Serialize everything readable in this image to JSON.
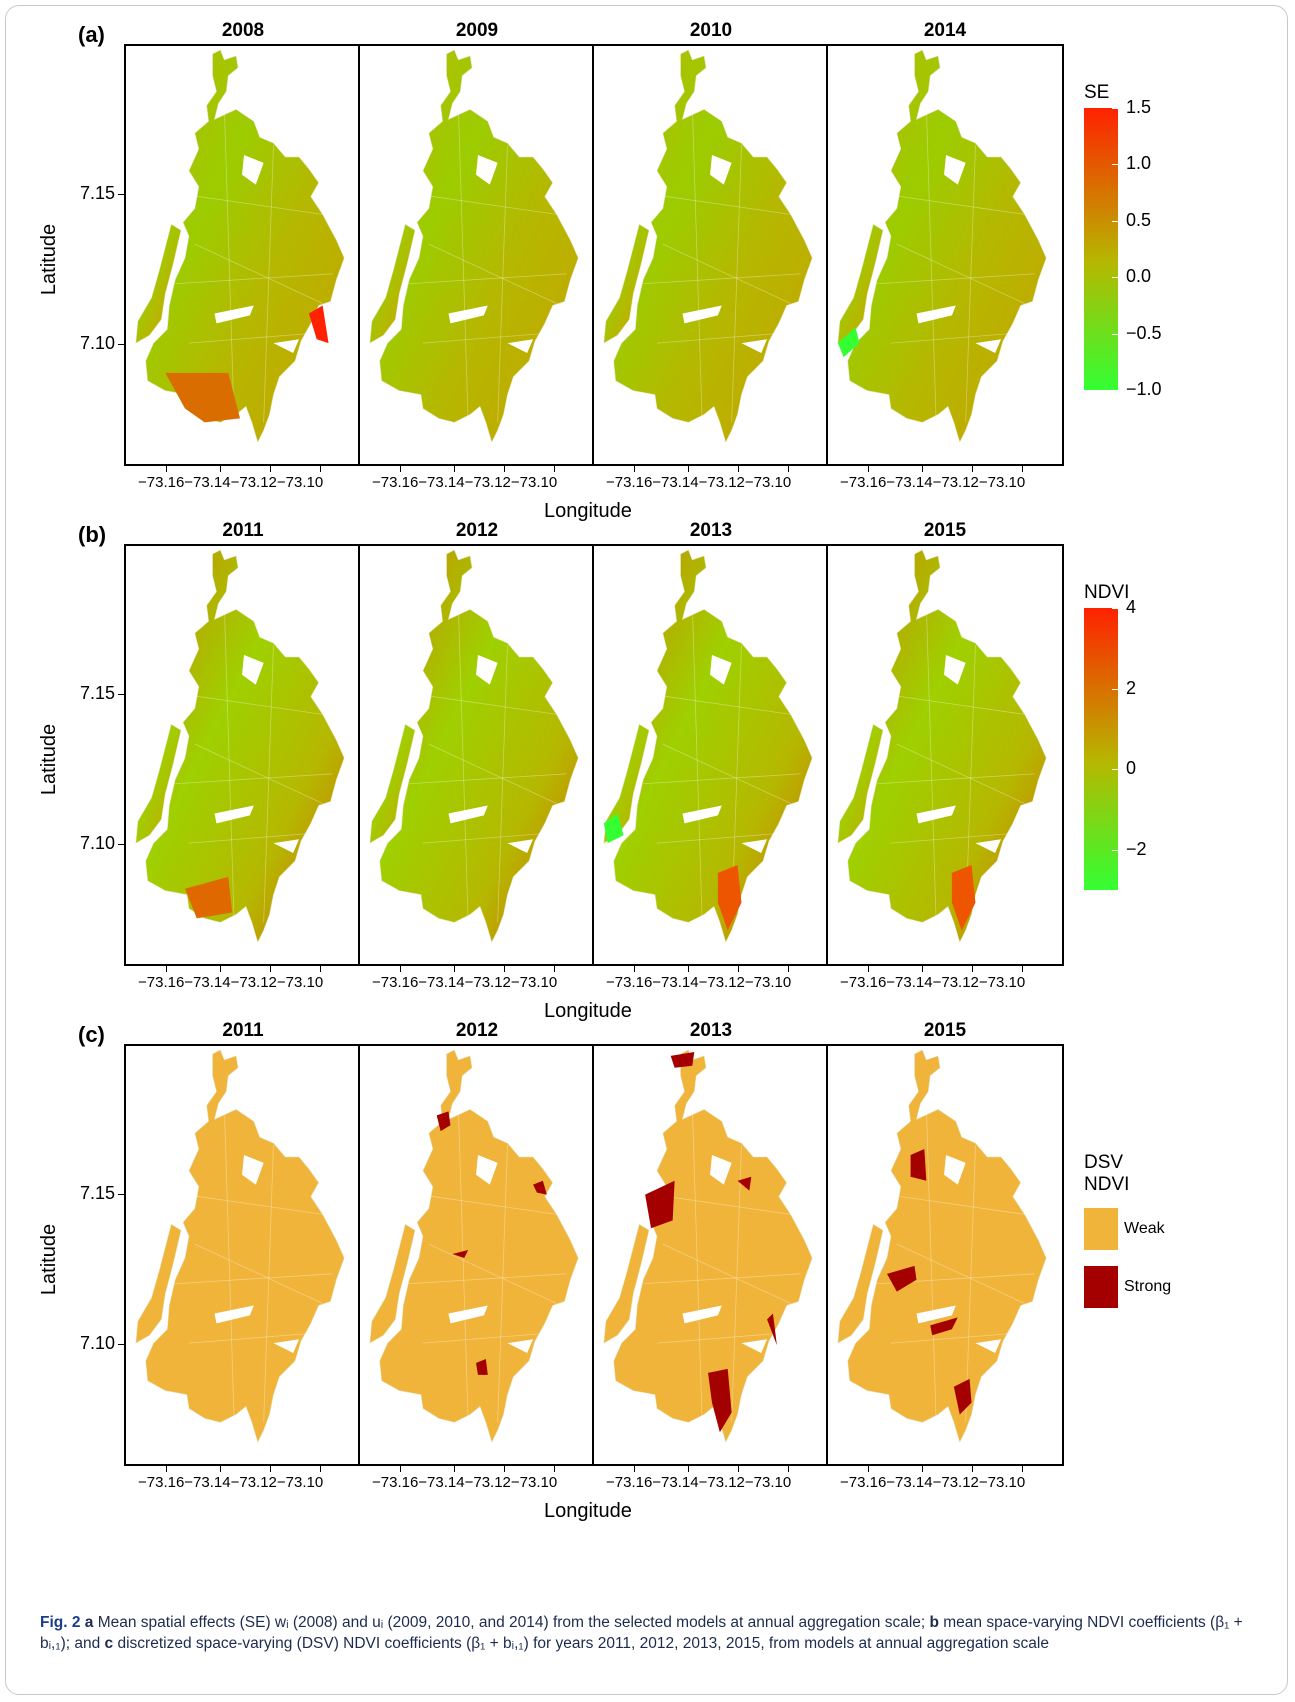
{
  "colors": {
    "se_low": "#33ff33",
    "se_mid": "#b5b800",
    "se_high": "#ff2200",
    "weak": "#f0b43a",
    "strong": "#a40000",
    "caption_text": "#1d2b4f",
    "caption_label": "#1a3e8c"
  },
  "chart_data": [
    {
      "panel": "(a)",
      "type": "choropleth",
      "maps": [
        "2008",
        "2009",
        "2010",
        "2014"
      ],
      "xlabel": "Longitude",
      "ylabel": "Latitude",
      "xticks": [
        "−73.16",
        "−73.14",
        "−73.12",
        "−73.10"
      ],
      "yticks": [
        "7.15",
        "7.10"
      ],
      "legend": {
        "title": "SE",
        "ticks": [
          "1.5",
          "1.0",
          "0.5",
          "0.0",
          "−0.5",
          "−1.0"
        ],
        "range": [
          -1.0,
          1.5
        ],
        "colors": [
          "#33ff33",
          "#b5b800",
          "#ff2200"
        ]
      }
    },
    {
      "panel": "(b)",
      "type": "choropleth",
      "maps": [
        "2011",
        "2012",
        "2013",
        "2015"
      ],
      "xlabel": "Longitude",
      "ylabel": "Latitude",
      "xticks": [
        "−73.16",
        "−73.14",
        "−73.12",
        "−73.10"
      ],
      "yticks": [
        "7.15",
        "7.10"
      ],
      "legend": {
        "title": "NDVI",
        "ticks": [
          "4",
          "2",
          "0",
          "−2"
        ],
        "range": [
          -3,
          4
        ],
        "colors": [
          "#33ff33",
          "#b5b800",
          "#ff2200"
        ]
      }
    },
    {
      "panel": "(c)",
      "type": "choropleth",
      "maps": [
        "2011",
        "2012",
        "2013",
        "2015"
      ],
      "xlabel": "Longitude",
      "ylabel": "Latitude",
      "xticks": [
        "−73.16",
        "−73.14",
        "−73.12",
        "−73.10"
      ],
      "yticks": [
        "7.15",
        "7.10"
      ],
      "legend": {
        "title_line1": "DSV",
        "title_line2": "NDVI",
        "categories": [
          "Weak",
          "Strong"
        ],
        "colors": [
          "#f0b43a",
          "#a40000"
        ]
      }
    }
  ],
  "caption": {
    "label": "Fig. 2",
    "line1_a": "a",
    "line1_text": " Mean spatial effects (SE) wᵢ (2008) and uᵢ (2009, 2010, and 2014) from the selected models at annual aggregation scale; ",
    "line1_b": "b",
    "line1_text2": " mean space-varying NDVI coefficients (β₁ + bᵢ,₁); and ",
    "line1_c": "c",
    "line1_text3": " discretized space-varying (DSV) NDVI coefficients (β₁ + bᵢ,₁) for years 2011, 2012, 2013, 2015, from models at annual aggregation scale"
  }
}
